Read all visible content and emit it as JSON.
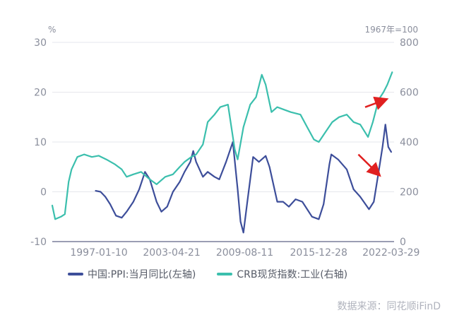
{
  "chart_data": {
    "type": "line",
    "left_unit": "%",
    "right_unit": "1967年=100",
    "left_axis": {
      "ticks": [
        30,
        20,
        10,
        0,
        -10
      ],
      "ylim": [
        -10,
        30
      ]
    },
    "right_axis": {
      "ticks": [
        800,
        600,
        400,
        200,
        0
      ],
      "ylim": [
        0,
        800
      ]
    },
    "x_tick_labels": [
      "1997-01-10",
      "2003-04-21",
      "2009-08-11",
      "2015-12-28",
      "2022-03-29"
    ],
    "xlim": [
      "1993-01",
      "2022-07"
    ],
    "series": [
      {
        "name": "中国:PPI:当月同比(左轴)",
        "axis": "left",
        "color": "#3d4e9a",
        "points": [
          [
            "1996-10",
            0.2
          ],
          [
            "1997-03",
            0.0
          ],
          [
            "1997-08",
            -1.0
          ],
          [
            "1998-01",
            -2.5
          ],
          [
            "1998-07",
            -4.8
          ],
          [
            "1999-01",
            -5.2
          ],
          [
            "1999-06",
            -4.0
          ],
          [
            "2000-01",
            -2.0
          ],
          [
            "2000-07",
            0.5
          ],
          [
            "2001-01",
            4.0
          ],
          [
            "2001-06",
            2.5
          ],
          [
            "2002-01",
            -2.0
          ],
          [
            "2002-06",
            -4.0
          ],
          [
            "2002-12",
            -3.0
          ],
          [
            "2003-06",
            0.0
          ],
          [
            "2004-01",
            2.0
          ],
          [
            "2004-06",
            4.0
          ],
          [
            "2004-12",
            6.0
          ],
          [
            "2005-03",
            8.2
          ],
          [
            "2005-06",
            6.0
          ],
          [
            "2006-01",
            3.0
          ],
          [
            "2006-06",
            4.0
          ],
          [
            "2007-01",
            3.0
          ],
          [
            "2007-06",
            2.5
          ],
          [
            "2008-01",
            6.0
          ],
          [
            "2008-08",
            10.0
          ],
          [
            "2009-01",
            0.5
          ],
          [
            "2009-04",
            -6.0
          ],
          [
            "2009-07",
            -8.2
          ],
          [
            "2009-11",
            -2.0
          ],
          [
            "2010-05",
            7.0
          ],
          [
            "2010-11",
            6.0
          ],
          [
            "2011-06",
            7.2
          ],
          [
            "2011-10",
            5.0
          ],
          [
            "2012-06",
            -2.0
          ],
          [
            "2012-12",
            -2.0
          ],
          [
            "2013-06",
            -3.0
          ],
          [
            "2014-01",
            -1.5
          ],
          [
            "2014-08",
            -2.0
          ],
          [
            "2015-06",
            -5.0
          ],
          [
            "2016-01",
            -5.5
          ],
          [
            "2016-06",
            -2.5
          ],
          [
            "2016-12",
            5.5
          ],
          [
            "2017-02",
            7.5
          ],
          [
            "2017-09",
            6.5
          ],
          [
            "2018-06",
            4.5
          ],
          [
            "2019-01",
            0.5
          ],
          [
            "2019-08",
            -1.0
          ],
          [
            "2020-05",
            -3.5
          ],
          [
            "2020-10",
            -2.0
          ],
          [
            "2021-03",
            4.0
          ],
          [
            "2021-07",
            9.0
          ],
          [
            "2021-10",
            13.5
          ],
          [
            "2022-01",
            9.0
          ],
          [
            "2022-04",
            8.0
          ]
        ]
      },
      {
        "name": "CRB现货指数:工业(右轴)",
        "axis": "right",
        "color": "#3bbfad",
        "points": [
          [
            "1993-01",
            145
          ],
          [
            "1993-04",
            90
          ],
          [
            "1993-10",
            100
          ],
          [
            "1994-02",
            110
          ],
          [
            "1994-06",
            240
          ],
          [
            "1994-09",
            290
          ],
          [
            "1995-03",
            340
          ],
          [
            "1995-10",
            350
          ],
          [
            "1996-06",
            340
          ],
          [
            "1997-01",
            345
          ],
          [
            "1997-09",
            330
          ],
          [
            "1998-06",
            310
          ],
          [
            "1999-01",
            290
          ],
          [
            "1999-06",
            260
          ],
          [
            "2000-01",
            270
          ],
          [
            "2000-09",
            280
          ],
          [
            "2001-06",
            250
          ],
          [
            "2002-01",
            230
          ],
          [
            "2002-10",
            260
          ],
          [
            "2003-06",
            270
          ],
          [
            "2004-01",
            300
          ],
          [
            "2004-06",
            320
          ],
          [
            "2005-01",
            340
          ],
          [
            "2005-06",
            350
          ],
          [
            "2006-01",
            390
          ],
          [
            "2006-06",
            480
          ],
          [
            "2007-01",
            510
          ],
          [
            "2007-07",
            540
          ],
          [
            "2008-03",
            550
          ],
          [
            "2008-10",
            370
          ],
          [
            "2009-01",
            330
          ],
          [
            "2009-07",
            460
          ],
          [
            "2010-02",
            550
          ],
          [
            "2010-08",
            580
          ],
          [
            "2011-02",
            670
          ],
          [
            "2011-06",
            630
          ],
          [
            "2011-12",
            520
          ],
          [
            "2012-06",
            540
          ],
          [
            "2013-01",
            530
          ],
          [
            "2013-08",
            520
          ],
          [
            "2014-06",
            510
          ],
          [
            "2015-01",
            460
          ],
          [
            "2015-08",
            410
          ],
          [
            "2016-01",
            400
          ],
          [
            "2016-08",
            440
          ],
          [
            "2017-03",
            480
          ],
          [
            "2017-10",
            500
          ],
          [
            "2018-06",
            510
          ],
          [
            "2019-01",
            480
          ],
          [
            "2019-08",
            470
          ],
          [
            "2020-04",
            420
          ],
          [
            "2020-09",
            480
          ],
          [
            "2021-03",
            570
          ],
          [
            "2021-08",
            600
          ],
          [
            "2021-12",
            630
          ],
          [
            "2022-03",
            660
          ],
          [
            "2022-05",
            680
          ]
        ]
      }
    ],
    "legend": [
      "中国:PPI:当月同比(左轴)",
      "CRB现货指数:工业(右轴)"
    ],
    "annotations": [
      {
        "type": "arrow",
        "color": "#e02020",
        "from": [
          "2020-01",
          540
        ],
        "to": [
          "2021-10",
          570
        ]
      },
      {
        "type": "arrow",
        "color": "#e02020",
        "from": [
          "2019-06",
          7.5
        ],
        "to": [
          "2021-03",
          3.5
        ]
      }
    ]
  },
  "source": "数据来源：同花顺iFinD"
}
